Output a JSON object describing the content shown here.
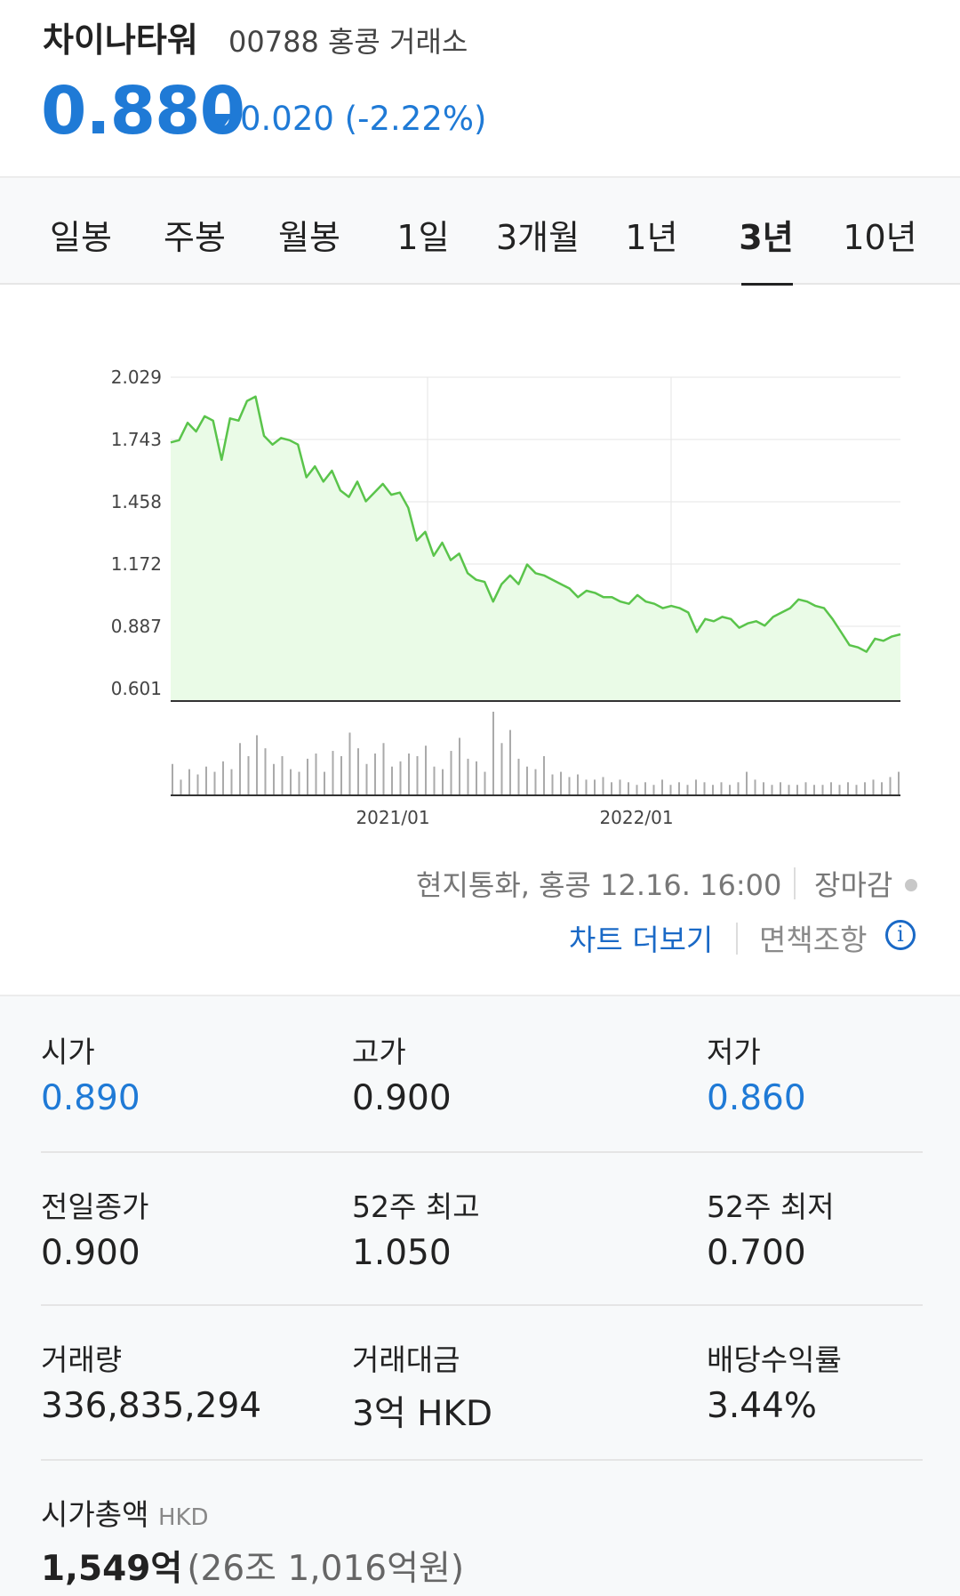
{
  "header": {
    "name": "차이나타워",
    "code_exchange": "00788 홍콩 거래소",
    "price": "0.880",
    "change": "0.020 (-2.22%)",
    "accent_color": "#1f7ad6"
  },
  "tabs": [
    {
      "label": "일봉"
    },
    {
      "label": "주봉"
    },
    {
      "label": "월봉"
    },
    {
      "label": "1일"
    },
    {
      "label": "3개월"
    },
    {
      "label": "1년"
    },
    {
      "label": "3년",
      "active": true
    },
    {
      "label": "10년"
    }
  ],
  "chart_data": {
    "type": "area",
    "title": "",
    "xlabel": "",
    "ylabel": "",
    "y_ticks": [
      "2.029",
      "1.743",
      "1.458",
      "1.172",
      "0.887",
      "0.601"
    ],
    "ylim": [
      0.601,
      2.029
    ],
    "x_ticks": [
      "2021/01",
      "2022/01"
    ],
    "line_color": "#5ac44b",
    "fill_color": "#eafbe7",
    "grid": true,
    "price_series": [
      1.73,
      1.74,
      1.82,
      1.78,
      1.85,
      1.83,
      1.65,
      1.84,
      1.83,
      1.92,
      1.94,
      1.76,
      1.72,
      1.75,
      1.74,
      1.72,
      1.57,
      1.62,
      1.55,
      1.6,
      1.51,
      1.48,
      1.55,
      1.46,
      1.5,
      1.54,
      1.49,
      1.5,
      1.43,
      1.28,
      1.32,
      1.21,
      1.27,
      1.19,
      1.22,
      1.13,
      1.1,
      1.09,
      1.0,
      1.08,
      1.12,
      1.08,
      1.17,
      1.13,
      1.12,
      1.1,
      1.08,
      1.06,
      1.02,
      1.05,
      1.04,
      1.02,
      1.02,
      1.0,
      0.99,
      1.03,
      1.0,
      0.99,
      0.97,
      0.98,
      0.97,
      0.95,
      0.86,
      0.92,
      0.91,
      0.93,
      0.92,
      0.88,
      0.9,
      0.91,
      0.89,
      0.93,
      0.95,
      0.97,
      1.01,
      1.0,
      0.98,
      0.97,
      0.92,
      0.86,
      0.8,
      0.79,
      0.77,
      0.83,
      0.82,
      0.84,
      0.85
    ],
    "volume_series": [
      1.2,
      0.6,
      1.0,
      0.8,
      1.1,
      0.9,
      1.3,
      1.0,
      2.0,
      1.5,
      2.3,
      1.8,
      1.2,
      1.5,
      1.0,
      0.9,
      1.4,
      1.6,
      0.9,
      1.7,
      1.5,
      2.4,
      1.8,
      1.2,
      1.6,
      2.0,
      1.1,
      1.3,
      1.6,
      1.5,
      1.9,
      1.1,
      1.0,
      1.7,
      2.2,
      1.4,
      1.3,
      0.9,
      3.2,
      2.0,
      2.5,
      1.4,
      1.1,
      1.0,
      1.5,
      0.8,
      0.9,
      0.7,
      0.8,
      0.6,
      0.6,
      0.7,
      0.5,
      0.6,
      0.5,
      0.4,
      0.5,
      0.4,
      0.6,
      0.4,
      0.5,
      0.4,
      0.6,
      0.5,
      0.4,
      0.5,
      0.4,
      0.5,
      0.9,
      0.6,
      0.5,
      0.4,
      0.5,
      0.4,
      0.4,
      0.5,
      0.4,
      0.4,
      0.5,
      0.4,
      0.5,
      0.4,
      0.5,
      0.6,
      0.5,
      0.7,
      0.9
    ]
  },
  "chart_footer": {
    "source": "현지통화, 홍콩 12.16. 16:00",
    "status": "장마감",
    "more_chart": "차트 더보기",
    "disclaimer": "면책조항",
    "info_icon": "ⓘ"
  },
  "stats": {
    "open_label": "시가",
    "open": "0.890",
    "high_label": "고가",
    "high": "0.900",
    "low_label": "저가",
    "low": "0.860",
    "prev_close_label": "전일종가",
    "prev_close": "0.900",
    "w52_high_label": "52주 최고",
    "w52_high": "1.050",
    "w52_low_label": "52주 최저",
    "w52_low": "0.700",
    "volume_label": "거래량",
    "volume": "336,835,294",
    "turnover_label": "거래대금",
    "turnover": "3억 HKD",
    "dividend_label": "배당수익률",
    "dividend": "3.44%",
    "market_cap_label": "시가총액",
    "market_cap_unit": "HKD",
    "market_cap": "1,549억",
    "market_cap_krw": "(26조 1,016억원)"
  }
}
